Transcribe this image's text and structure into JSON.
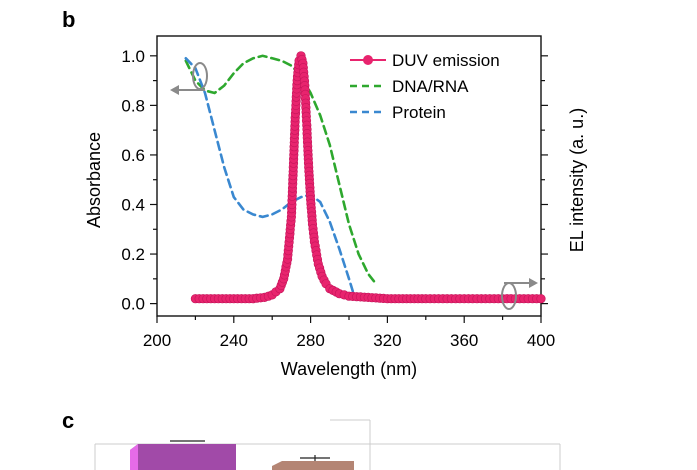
{
  "panel_labels": {
    "top": "b",
    "bottom": "c"
  },
  "chart_data": {
    "type": "line",
    "xlabel": "Wavelength (nm)",
    "ylabel_left": "Absorbance",
    "ylabel_right": "EL intensity (a. u.)",
    "xlim": [
      200,
      400
    ],
    "ylim": [
      -0.05,
      1.08
    ],
    "x_ticks": [
      "200",
      "240",
      "280",
      "320",
      "360",
      "400"
    ],
    "y_ticks": [
      "0.0",
      "0.2",
      "0.4",
      "0.6",
      "0.8",
      "1.0"
    ],
    "y_tick_values": [
      0.0,
      0.2,
      0.4,
      0.6,
      0.8,
      1.0
    ],
    "legend_position": "top-right",
    "series": [
      {
        "name": "DUV emission",
        "color": "#e8246e",
        "style": "solid-with-markers",
        "x": [
          220,
          230,
          240,
          250,
          256,
          260,
          264,
          266,
          268,
          270,
          271,
          272,
          273,
          274,
          275,
          276,
          277,
          278,
          279,
          280,
          281,
          282,
          284,
          286,
          288,
          290,
          295,
          300,
          310,
          320,
          330,
          340,
          360,
          380,
          400
        ],
        "y": [
          0.02,
          0.02,
          0.02,
          0.02,
          0.025,
          0.035,
          0.06,
          0.1,
          0.18,
          0.35,
          0.55,
          0.75,
          0.9,
          0.98,
          1.0,
          0.97,
          0.88,
          0.72,
          0.55,
          0.42,
          0.32,
          0.25,
          0.16,
          0.11,
          0.08,
          0.06,
          0.04,
          0.03,
          0.025,
          0.02,
          0.02,
          0.02,
          0.02,
          0.02,
          0.02
        ]
      },
      {
        "name": "DNA/RNA",
        "color": "#2ea82e",
        "style": "dashed",
        "x": [
          215,
          220,
          225,
          230,
          235,
          240,
          245,
          250,
          255,
          260,
          265,
          270,
          275,
          280,
          285,
          290,
          295,
          300,
          305,
          310,
          313
        ],
        "y": [
          0.98,
          0.9,
          0.86,
          0.85,
          0.88,
          0.93,
          0.97,
          0.99,
          1.0,
          0.99,
          0.98,
          0.96,
          0.92,
          0.85,
          0.76,
          0.64,
          0.48,
          0.32,
          0.2,
          0.12,
          0.09
        ]
      },
      {
        "name": "Protein",
        "color": "#3a88d0",
        "style": "dashed",
        "x": [
          215,
          220,
          225,
          230,
          235,
          240,
          245,
          250,
          255,
          260,
          265,
          270,
          275,
          280,
          285,
          290,
          295,
          300,
          302
        ],
        "y": [
          0.99,
          0.95,
          0.85,
          0.7,
          0.55,
          0.43,
          0.38,
          0.36,
          0.35,
          0.36,
          0.38,
          0.41,
          0.43,
          0.44,
          0.41,
          0.33,
          0.22,
          0.1,
          0.05
        ]
      }
    ]
  }
}
